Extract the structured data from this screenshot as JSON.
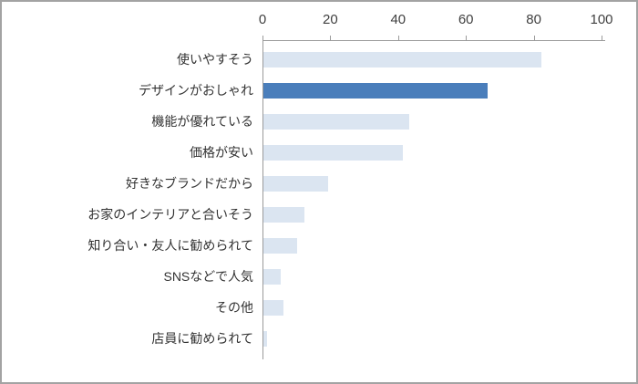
{
  "chart_data": {
    "type": "bar",
    "orientation": "horizontal",
    "title": "",
    "xlabel": "",
    "ylabel": "",
    "xlim": [
      0,
      100
    ],
    "xticks": [
      0,
      20,
      40,
      60,
      80,
      100
    ],
    "grid": false,
    "legend": "none",
    "categories": [
      "使いやすそう",
      "デザインがおしゃれ",
      "機能が優れている",
      "価格が安い",
      "好きなブランドだから",
      "お家のインテリアと合いそう",
      "知り合い・友人に勧められて",
      "SNSなどで人気",
      "その他",
      "店員に勧められて"
    ],
    "values": [
      82,
      66,
      43,
      41,
      19,
      12,
      10,
      5,
      6,
      1
    ],
    "highlight_index": 1,
    "colors": {
      "bar": "#dbe5f1",
      "highlight": "#4a7ebb",
      "axis": "#9a9a9a",
      "text": "#404040",
      "frame_border": "#a3a3a3"
    }
  }
}
